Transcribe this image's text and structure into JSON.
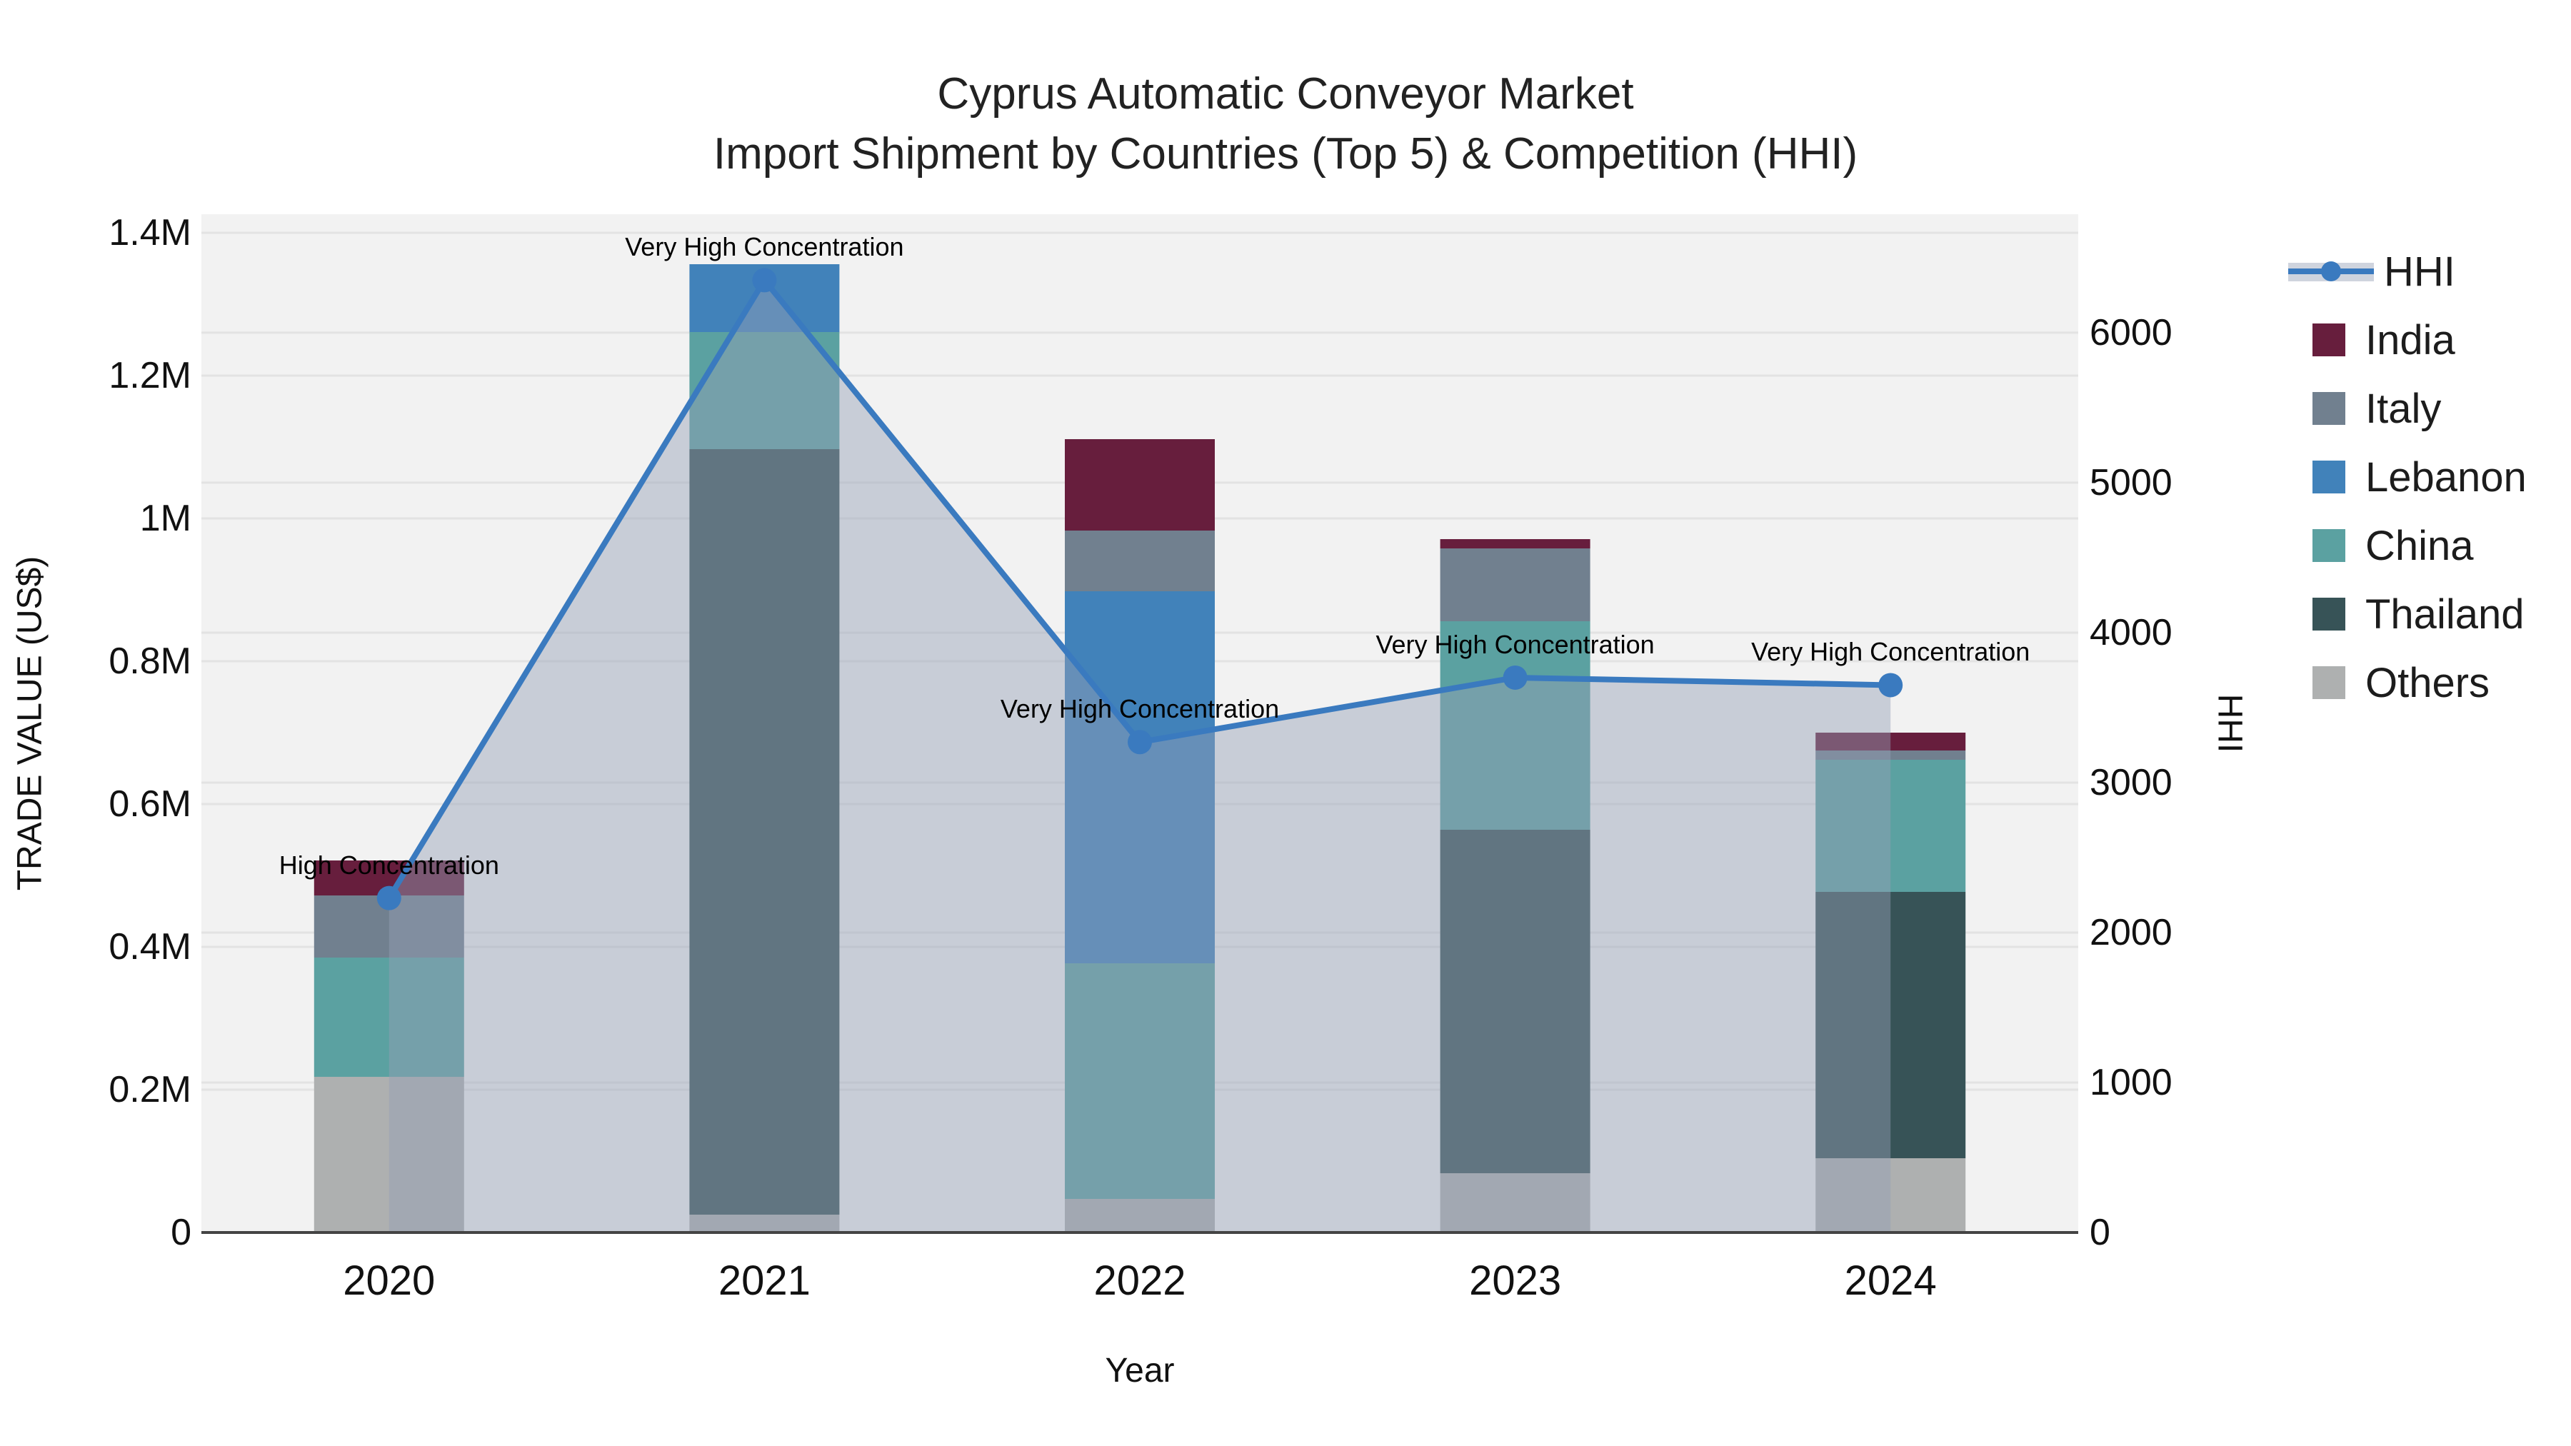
{
  "chart_data": {
    "type": "bar+line",
    "title": {
      "line1": "Cyprus Automatic Conveyor Market",
      "line2": "Import Shipment by Countries (Top 5) & Competition (HHI)"
    },
    "xlabel": "Year",
    "ylabel_left": "TRADE VALUE (US$)",
    "ylabel_right": "HHI",
    "categories": [
      "2020",
      "2021",
      "2022",
      "2023",
      "2024"
    ],
    "series": [
      {
        "name": "Others",
        "color": "#aeb0b0",
        "values": [
          218000,
          25000,
          47000,
          83000,
          104000
        ]
      },
      {
        "name": "Thailand",
        "color": "#375357",
        "values": [
          0,
          1072000,
          0,
          481000,
          373000
        ]
      },
      {
        "name": "China",
        "color": "#5ba1a1",
        "values": [
          167000,
          164000,
          330000,
          292000,
          185000
        ]
      },
      {
        "name": "Lebanon",
        "color": "#4182ba",
        "values": [
          0,
          95000,
          521000,
          0,
          0
        ]
      },
      {
        "name": "Italy",
        "color": "#71808f",
        "values": [
          87000,
          0,
          85000,
          102000,
          13000
        ]
      },
      {
        "name": "India",
        "color": "#671e3d",
        "values": [
          49000,
          0,
          128000,
          13000,
          25000
        ]
      }
    ],
    "line_series": {
      "name": "HHI",
      "color": "#3a7abf",
      "fill_color": "#94a0b5",
      "fill_opacity": 0.45,
      "values": [
        2230,
        6350,
        3270,
        3700,
        3650
      ]
    },
    "annotations": [
      "High Concentration",
      "Very High Concentration",
      "Very High Concentration",
      "Very High Concentration",
      "Very High Concentration"
    ],
    "legend_order": [
      "HHI",
      "India",
      "Italy",
      "Lebanon",
      "China",
      "Thailand",
      "Others"
    ],
    "y_left": {
      "labels": [
        "0",
        "0.2M",
        "0.4M",
        "0.6M",
        "0.8M",
        "1M",
        "1.2M",
        "1.4M"
      ],
      "values": [
        0,
        200000,
        400000,
        600000,
        800000,
        1000000,
        1200000,
        1400000
      ],
      "max": 1426000
    },
    "y_right": {
      "labels": [
        "0",
        "1000",
        "2000",
        "3000",
        "4000",
        "5000",
        "6000"
      ],
      "values": [
        0,
        1000,
        2000,
        3000,
        4000,
        5000,
        6000
      ],
      "max": 6790
    },
    "grid": true,
    "legend_position": "right",
    "colors": {
      "plot_bg": "#f2f2f2",
      "grid": "#e3e3e3",
      "axis_line": "#444444",
      "text": "#1c1c1c"
    }
  }
}
